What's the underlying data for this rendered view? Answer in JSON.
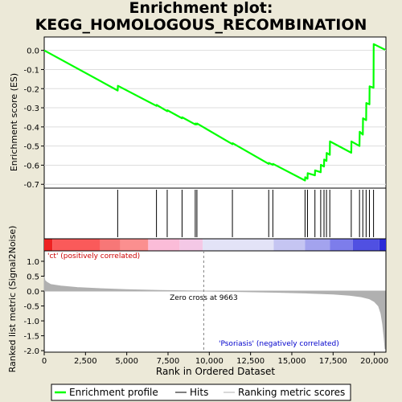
{
  "title_lines": [
    "Enrichment plot:",
    "KEGG_HOMOLOGOUS_RECOMBINATION"
  ],
  "colors": {
    "background": "#ece9d8",
    "es_line": "#00ff00",
    "zero_cross": "#808080",
    "metric_fill": "#b0b0b0",
    "annotation_pos": "#cc0000",
    "annotation_neg": "#0000cc"
  },
  "chart_data": {
    "type": "line",
    "xlabel": "Rank in Ordered Dataset",
    "x_ticks": [
      0,
      2500,
      5000,
      7500,
      10000,
      12500,
      15000,
      17500,
      20000
    ],
    "x_tick_labels": [
      "0",
      "2,500",
      "5,000",
      "7,500",
      "10,000",
      "12,500",
      "15,000",
      "17,500",
      "20,000"
    ],
    "xlim": [
      0,
      20700
    ],
    "es_panel": {
      "ylabel": "Enrichment score (ES)",
      "ylim": [
        -0.72,
        0.07
      ],
      "y_ticks": [
        0.0,
        -0.1,
        -0.2,
        -0.3,
        -0.4,
        -0.5,
        -0.6,
        -0.7
      ],
      "y_tick_labels": [
        "0.0",
        "-0.1",
        "-0.2",
        "-0.3",
        "-0.4",
        "-0.5",
        "-0.6",
        "-0.7"
      ],
      "series": [
        {
          "name": "Enrichment profile",
          "x": [
            0,
            4450,
            4460,
            6800,
            6810,
            7450,
            7460,
            8350,
            8360,
            9150,
            9160,
            9250,
            9260,
            11400,
            11410,
            13600,
            13610,
            13850,
            13860,
            15800,
            15810,
            15950,
            15960,
            16400,
            16410,
            16750,
            16760,
            16950,
            16960,
            17100,
            17110,
            17300,
            17310,
            18600,
            18610,
            19100,
            19110,
            19300,
            19310,
            19500,
            19510,
            19700,
            19710,
            19950,
            19960,
            20650
          ],
          "y": [
            0.0,
            -0.21,
            -0.185,
            -0.29,
            -0.285,
            -0.318,
            -0.313,
            -0.355,
            -0.35,
            -0.387,
            -0.382,
            -0.387,
            -0.382,
            -0.49,
            -0.485,
            -0.593,
            -0.588,
            -0.598,
            -0.593,
            -0.68,
            -0.663,
            -0.671,
            -0.642,
            -0.653,
            -0.627,
            -0.637,
            -0.598,
            -0.607,
            -0.57,
            -0.578,
            -0.536,
            -0.546,
            -0.476,
            -0.535,
            -0.476,
            -0.5,
            -0.425,
            -0.44,
            -0.355,
            -0.365,
            -0.275,
            -0.282,
            -0.188,
            -0.195,
            0.033,
            0.003
          ]
        }
      ]
    },
    "hits_panel": {
      "hits": [
        4450,
        6800,
        7450,
        8350,
        9150,
        9250,
        11400,
        13600,
        13850,
        15800,
        15950,
        16400,
        16750,
        16950,
        17100,
        17300,
        18600,
        19100,
        19300,
        19500,
        19700,
        19950
      ],
      "heat_bins": [
        {
          "x0": 0,
          "x1": 500,
          "color": "#ee2222"
        },
        {
          "x0": 500,
          "x1": 3400,
          "color": "#fa5a5a"
        },
        {
          "x0": 3400,
          "x1": 4600,
          "color": "#f77777"
        },
        {
          "x0": 4600,
          "x1": 6300,
          "color": "#fb8f8f"
        },
        {
          "x0": 6300,
          "x1": 8200,
          "color": "#fbbcd8"
        },
        {
          "x0": 8200,
          "x1": 9600,
          "color": "#f4c8e6"
        },
        {
          "x0": 9600,
          "x1": 13900,
          "color": "#e3e3f7"
        },
        {
          "x0": 13900,
          "x1": 15800,
          "color": "#c5c5f2"
        },
        {
          "x0": 15800,
          "x1": 17300,
          "color": "#a3a3ee"
        },
        {
          "x0": 17300,
          "x1": 18700,
          "color": "#7d7deb"
        },
        {
          "x0": 18700,
          "x1": 20300,
          "color": "#5050e2"
        },
        {
          "x0": 20300,
          "x1": 20700,
          "color": "#2a2ad8"
        }
      ]
    },
    "metric_panel": {
      "ylabel": "Ranked list metric (Signal2Noise)",
      "ylim": [
        -2.05,
        1.35
      ],
      "y_ticks": [
        1.0,
        0.5,
        0.0,
        -0.5,
        -1.0,
        -1.5,
        -2.0
      ],
      "y_tick_labels": [
        "1.0",
        "0.5",
        "0.0",
        "-0.5",
        "-1.0",
        "-1.5",
        "-2.0"
      ],
      "x": [
        0,
        40,
        150,
        400,
        1000,
        2000,
        3500,
        5000,
        7000,
        9663,
        12000,
        14000,
        16000,
        17500,
        18500,
        19200,
        19700,
        20000,
        20250,
        20400,
        20500,
        20600,
        20650
      ],
      "values": [
        0.48,
        0.36,
        0.3,
        0.22,
        0.17,
        0.12,
        0.08,
        0.05,
        0.02,
        0.0,
        -0.02,
        -0.04,
        -0.07,
        -0.1,
        -0.14,
        -0.19,
        -0.26,
        -0.35,
        -0.5,
        -0.75,
        -1.1,
        -1.6,
        -1.95
      ],
      "zero_cross_rank": 9663,
      "zero_cross_label": "Zero cross at 9663",
      "pos_label": "'ct' (positively correlated)",
      "neg_label": "'Psoriasis' (negatively correlated)"
    },
    "legend": {
      "position": "bottom",
      "entries": [
        "Enrichment profile",
        "Hits",
        "Ranking metric scores"
      ]
    }
  }
}
